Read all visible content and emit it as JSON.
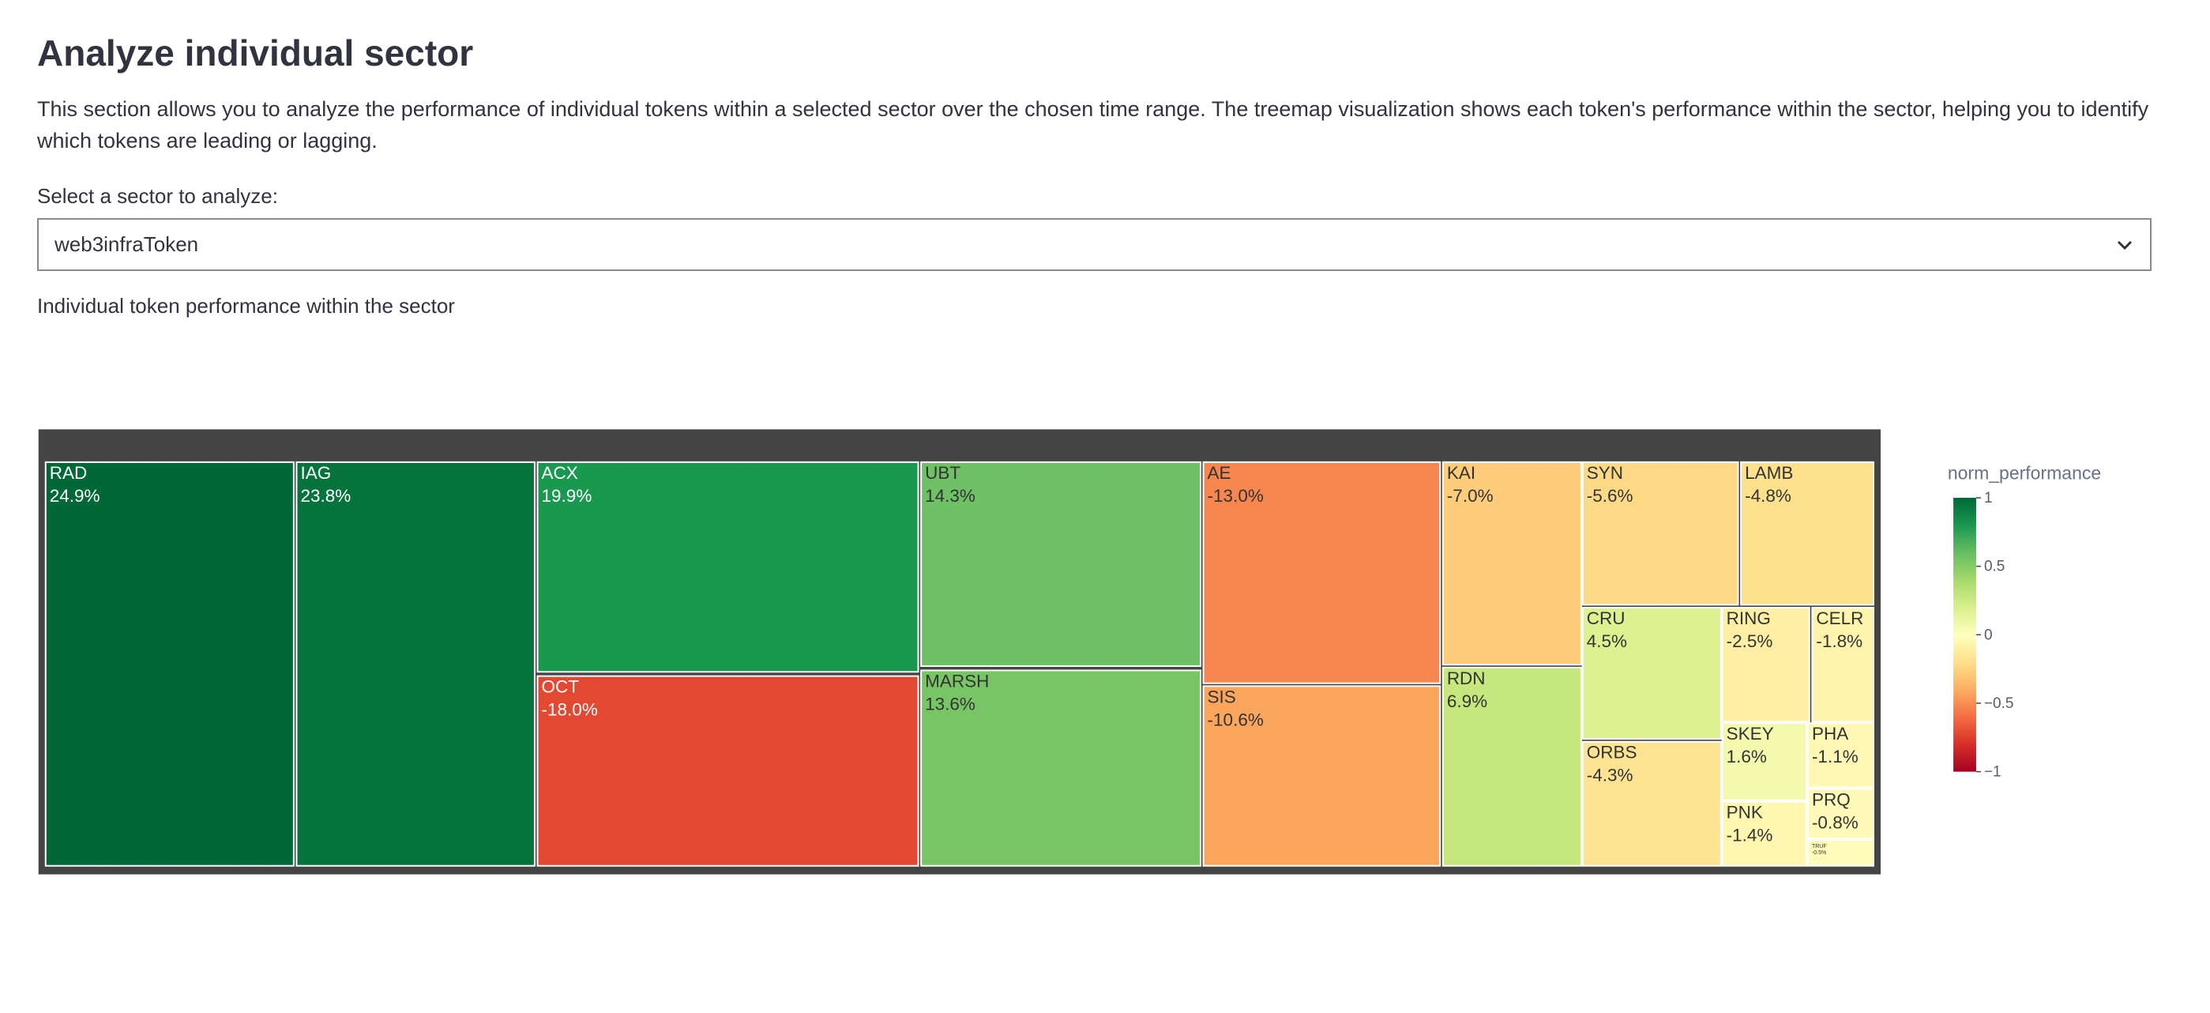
{
  "header": {
    "title": "Analyze individual sector",
    "description": "This section allows you to analyze the performance of individual tokens within a selected sector over the chosen time range. The treemap visualization shows each token's performance within the sector, helping you to identify which tokens are leading or lagging.",
    "select_label": "Select a sector to analyze:",
    "select_value": "web3infraToken",
    "caption": "Individual token performance within the sector"
  },
  "chart_data": {
    "type": "treemap",
    "labels": [
      "RAD",
      "IAG",
      "ACX",
      "OCT",
      "UBT",
      "MARSH",
      "AE",
      "SIS",
      "KAI",
      "RDN",
      "SYN",
      "LAMB",
      "CRU",
      "RING",
      "CELR",
      "ORBS",
      "SKEY",
      "PHA",
      "PNK",
      "PRQ",
      "TRUF"
    ],
    "values": [
      24.9,
      23.8,
      19.9,
      -18.0,
      14.3,
      13.6,
      -13.0,
      -10.6,
      -7.0,
      6.9,
      -5.6,
      -4.8,
      4.5,
      -2.5,
      -1.8,
      -4.3,
      1.6,
      -1.1,
      -1.4,
      -0.8,
      -0.5
    ],
    "value_labels": [
      "24.9%",
      "23.8%",
      "19.9%",
      "-18.0%",
      "14.3%",
      "13.6%",
      "-13.0%",
      "-10.6%",
      "-7.0%",
      "6.9%",
      "-5.6%",
      "-4.8%",
      "4.5%",
      "-2.5%",
      "-1.8%",
      "-4.3%",
      "1.6%",
      "-1.1%",
      "-1.4%",
      "-0.8%",
      "-0.5%"
    ],
    "colorscale": [
      "#a50026",
      "#d73027",
      "#f46d43",
      "#fdae61",
      "#fee08b",
      "#ffffbf",
      "#d9ef8b",
      "#a6d96a",
      "#66bd63",
      "#1a9850",
      "#006837"
    ],
    "colorbar": {
      "title": "norm_performance",
      "clim": [
        -1,
        1
      ],
      "ticks": [
        1,
        0.5,
        0,
        {
          "value": -0.5,
          "label": "−0.5"
        },
        {
          "value": -1,
          "label": "−1"
        }
      ]
    }
  }
}
